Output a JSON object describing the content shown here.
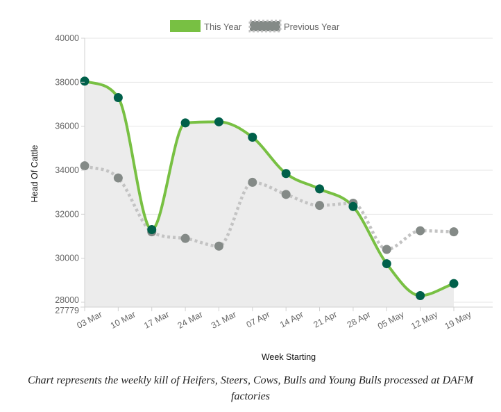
{
  "chart_data": {
    "type": "line",
    "xlabel": "Week Starting",
    "ylabel": "Head Of Cattle",
    "categories": [
      "03 Mar",
      "10 Mar",
      "17 Mar",
      "24 Mar",
      "31 Mar",
      "07 Apr",
      "14 Apr",
      "21 Apr",
      "28 Apr",
      "05 May",
      "12 May",
      "19 May"
    ],
    "ylim": [
      27779,
      40000
    ],
    "yticks": [
      "27779",
      "28000",
      "30000",
      "32000",
      "34000",
      "36000",
      "38000",
      "40000"
    ],
    "grid": true,
    "legend_position": "top-center",
    "series": [
      {
        "name": "This Year",
        "style": "solid-filled",
        "line_color": "#78c043",
        "point_color": "#00604a",
        "fill_color": "#ececec",
        "values": [
          38050,
          37300,
          31300,
          36150,
          36200,
          35500,
          33850,
          33150,
          32350,
          29750,
          28300,
          28850
        ]
      },
      {
        "name": "Previous Year",
        "style": "dotted",
        "line_color": "#c3c3c3",
        "point_color": "#848a87",
        "values": [
          34200,
          33650,
          31200,
          30900,
          30550,
          33450,
          32900,
          32400,
          32500,
          30400,
          31250,
          31200
        ]
      }
    ]
  },
  "caption": "Chart represents the weekly kill of Heifers, Steers, Cows, Bulls and Young Bulls processed at DAFM factories"
}
